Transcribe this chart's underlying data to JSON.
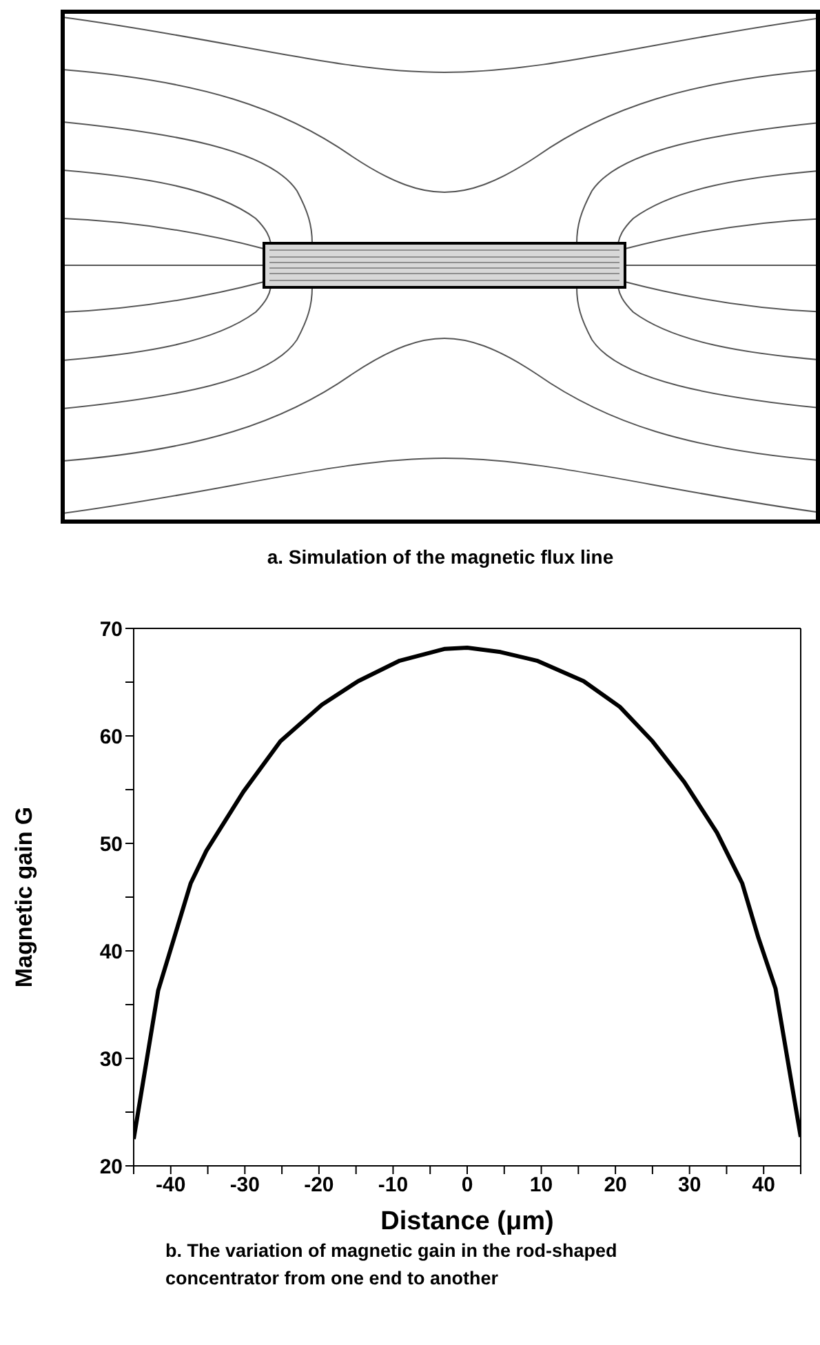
{
  "chart_data": {
    "type": "line",
    "xlabel": "Distance (μm)",
    "ylabel": "Magnetic gain G",
    "annotations": [
      "a. Simulation of the magnetic flux line",
      "b. The variation of magnetic gain in the rod-shaped concentrator from one end to another"
    ],
    "x": [
      -45,
      -41.7,
      -37.3,
      -35.2,
      -30.2,
      -25.2,
      -19.6,
      -14.7,
      -9.1,
      -3,
      0,
      4.5,
      9.4,
      15.7,
      20.6,
      25,
      29.3,
      33.7,
      37.1,
      39.3,
      41.6,
      45
    ],
    "series": [
      {
        "color": "#000000",
        "values": [
          22.5,
          36.3,
          46.3,
          49.3,
          54.8,
          59.5,
          62.9,
          65.1,
          67.0,
          68.1,
          68.2,
          67.8,
          67.0,
          65.1,
          62.7,
          59.5,
          55.7,
          51.0,
          46.3,
          41.2,
          36.5,
          22.7
        ]
      }
    ],
    "xlim": [
      -45,
      45
    ],
    "xticks": [
      {
        "value": -45,
        "label": null
      },
      -40,
      {
        "value": -35,
        "label": null
      },
      -30,
      {
        "value": -25,
        "label": null
      },
      -20,
      {
        "value": -15,
        "label": null
      },
      -10,
      {
        "value": -5,
        "label": null
      },
      0,
      {
        "value": 5,
        "label": null
      },
      10,
      {
        "value": 15,
        "label": null
      },
      20,
      {
        "value": 25,
        "label": null
      },
      30,
      {
        "value": 35,
        "label": null
      },
      40,
      {
        "value": 45,
        "label": null
      }
    ],
    "ylim": [
      20,
      70
    ],
    "yticks": [
      20,
      {
        "value": 25,
        "label": null
      },
      30,
      {
        "value": 35,
        "label": null
      },
      40,
      {
        "value": 45,
        "label": null
      },
      50,
      {
        "value": 55,
        "label": null
      },
      60,
      {
        "value": 65,
        "label": null
      },
      70
    ],
    "marker": "none",
    "line_style": "solid"
  }
}
